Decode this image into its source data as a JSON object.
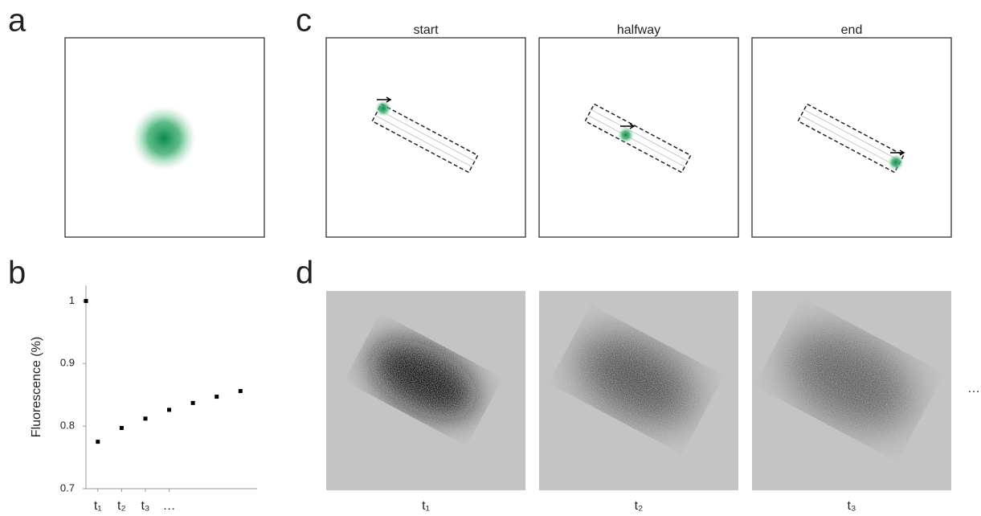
{
  "panels": {
    "a": "a",
    "b": "b",
    "c": "c",
    "d": "d"
  },
  "panel_c": {
    "titles": [
      "start",
      "halfway",
      "end"
    ]
  },
  "panel_d": {
    "labels": [
      "t₁",
      "t₂",
      "t₃"
    ],
    "more": "…"
  },
  "chart_data": {
    "type": "scatter",
    "y_label": "Fluorescence (%)",
    "x": [
      0,
      0.5,
      1.5,
      2.5,
      3.5,
      4.5,
      5.5,
      6.5
    ],
    "values": [
      1,
      0.775,
      0.797,
      0.812,
      0.826,
      0.837,
      0.847,
      0.856
    ],
    "color": "#000000",
    "xlim": [
      0,
      7.2
    ],
    "ylim": [
      0.7,
      1.025
    ],
    "xticks": [
      {
        "value": 0.5,
        "label": "t₁"
      },
      {
        "value": 1.5,
        "label": "t₂"
      },
      {
        "value": 2.5,
        "label": "t₃"
      },
      {
        "value": 3.5,
        "label": "…"
      }
    ],
    "yticks": [
      0.7,
      0.8,
      0.9,
      1
    ]
  }
}
